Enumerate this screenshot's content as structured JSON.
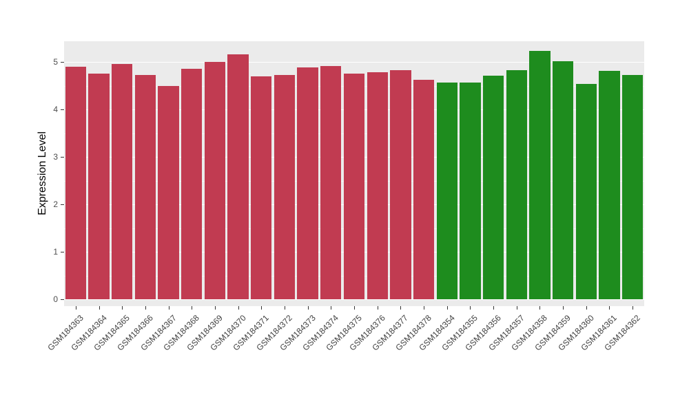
{
  "chart_data": {
    "type": "bar",
    "title": "",
    "xlabel": "",
    "ylabel": "Expression Level",
    "ylim": [
      0,
      5.45
    ],
    "yticks": [
      0,
      1,
      2,
      3,
      4,
      5
    ],
    "grid": "on",
    "legend_position": "none",
    "panel_background": "#EBEBEB",
    "grid_color": "#FFFFFF",
    "group_colors": {
      "red": "#C13B51",
      "green": "#1E8C1E"
    },
    "bars": [
      {
        "label": "GSM184363",
        "value": 4.9,
        "group": "red"
      },
      {
        "label": "GSM184364",
        "value": 4.75,
        "group": "red"
      },
      {
        "label": "GSM184365",
        "value": 4.95,
        "group": "red"
      },
      {
        "label": "GSM184366",
        "value": 4.73,
        "group": "red"
      },
      {
        "label": "GSM184367",
        "value": 4.5,
        "group": "red"
      },
      {
        "label": "GSM184368",
        "value": 4.86,
        "group": "red"
      },
      {
        "label": "GSM184369",
        "value": 5.0,
        "group": "red"
      },
      {
        "label": "GSM184370",
        "value": 5.16,
        "group": "red"
      },
      {
        "label": "GSM184371",
        "value": 4.7,
        "group": "red"
      },
      {
        "label": "GSM184372",
        "value": 4.72,
        "group": "red"
      },
      {
        "label": "GSM184373",
        "value": 4.89,
        "group": "red"
      },
      {
        "label": "GSM184374",
        "value": 4.91,
        "group": "red"
      },
      {
        "label": "GSM184375",
        "value": 4.76,
        "group": "red"
      },
      {
        "label": "GSM184376",
        "value": 4.79,
        "group": "red"
      },
      {
        "label": "GSM184377",
        "value": 4.83,
        "group": "red"
      },
      {
        "label": "GSM184378",
        "value": 4.63,
        "group": "red"
      },
      {
        "label": "GSM184354",
        "value": 4.56,
        "group": "green"
      },
      {
        "label": "GSM184355",
        "value": 4.56,
        "group": "green"
      },
      {
        "label": "GSM184356",
        "value": 4.71,
        "group": "green"
      },
      {
        "label": "GSM184357",
        "value": 4.83,
        "group": "green"
      },
      {
        "label": "GSM184358",
        "value": 5.23,
        "group": "green"
      },
      {
        "label": "GSM184359",
        "value": 5.01,
        "group": "green"
      },
      {
        "label": "GSM184360",
        "value": 4.54,
        "group": "green"
      },
      {
        "label": "GSM184361",
        "value": 4.81,
        "group": "green"
      },
      {
        "label": "GSM184362",
        "value": 4.72,
        "group": "green"
      }
    ]
  }
}
